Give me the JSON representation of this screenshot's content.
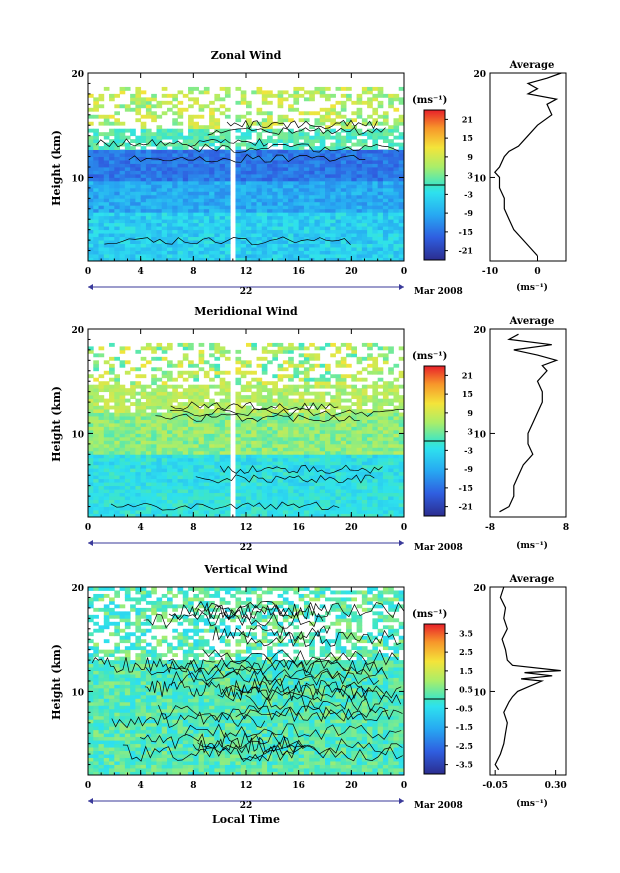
{
  "chart_data": [
    {
      "type": "heatmap",
      "title": "Zonal Wind",
      "ylabel": "Height (km)",
      "ylim": [
        2,
        20
      ],
      "y_ticks": [
        "20",
        "10"
      ],
      "xlim": [
        0,
        24
      ],
      "x_ticks": [
        "0",
        "4",
        "8",
        "12",
        "16",
        "20",
        "0"
      ],
      "date_day": "22",
      "date_month_year": "Mar 2008",
      "colorbar": {
        "unit_label": "(ms⁻¹)",
        "range": [
          -24,
          24
        ],
        "tick_labels": [
          "21",
          "15",
          "9",
          "3",
          "-3",
          "-9",
          "-15",
          "-21"
        ],
        "tick_values": [
          21,
          15,
          9,
          3,
          -3,
          -9,
          -15,
          -21
        ]
      },
      "profile": {
        "title": "Average",
        "xlim": [
          -10,
          6
        ],
        "x_ticks": [
          "-10",
          "0"
        ],
        "x_tick_values": [
          -10,
          0
        ],
        "y_ticks": [
          "20",
          "10"
        ],
        "xlabel": "(ms⁻¹)",
        "height": [
          2.5,
          3,
          4,
          5,
          6,
          7,
          8,
          9,
          10,
          10.5,
          11,
          12,
          12.5,
          13,
          14,
          15,
          16,
          17,
          17.5,
          18,
          18.5,
          19,
          19.5,
          20
        ],
        "value": [
          0,
          -1,
          -3,
          -5,
          -6,
          -7,
          -7,
          -8,
          -8,
          -9,
          -8,
          -7,
          -6,
          -4,
          -2,
          0,
          3,
          2,
          4,
          -2,
          0,
          -2,
          2,
          5
        ]
      }
    },
    {
      "type": "heatmap",
      "title": "Meridional Wind",
      "ylabel": "Height (km)",
      "ylim": [
        2,
        20
      ],
      "y_ticks": [
        "20",
        "10"
      ],
      "xlim": [
        0,
        24
      ],
      "x_ticks": [
        "0",
        "4",
        "8",
        "12",
        "16",
        "20",
        "0"
      ],
      "date_day": "22",
      "date_month_year": "Mar 2008",
      "colorbar": {
        "unit_label": "(ms⁻¹)",
        "range": [
          -24,
          24
        ],
        "tick_labels": [
          "21",
          "15",
          "9",
          "3",
          "-3",
          "-9",
          "-15",
          "-21"
        ],
        "tick_values": [
          21,
          15,
          9,
          3,
          -3,
          -9,
          -15,
          -21
        ]
      },
      "profile": {
        "title": "Average",
        "xlim": [
          -8,
          8
        ],
        "x_ticks": [
          "-8",
          "8"
        ],
        "x_tick_values": [
          -8,
          8
        ],
        "y_ticks": [
          "20",
          "10"
        ],
        "xlabel": "(ms⁻¹)",
        "height": [
          2.5,
          3,
          4,
          5,
          6,
          7,
          8,
          9,
          10,
          11,
          12,
          13,
          14,
          15,
          16,
          16.5,
          17,
          17.5,
          18,
          18.5,
          19,
          19.5
        ],
        "value": [
          -6,
          -4,
          -3,
          -3,
          -2,
          -1,
          1,
          0,
          0,
          1,
          2,
          3,
          3,
          2,
          4,
          3,
          6,
          2,
          -3,
          5,
          -4,
          -2
        ]
      }
    },
    {
      "type": "heatmap",
      "title": "Vertical Wind",
      "ylabel": "Height (km)",
      "xlabel": "Local Time",
      "ylim": [
        2,
        20
      ],
      "y_ticks": [
        "20",
        "10"
      ],
      "xlim": [
        0,
        24
      ],
      "x_ticks": [
        "0",
        "4",
        "8",
        "12",
        "16",
        "20",
        "0"
      ],
      "date_day": "22",
      "date_month_year": "Mar 2008",
      "colorbar": {
        "unit_label": "(ms⁻¹)",
        "range": [
          -4,
          4
        ],
        "tick_labels": [
          "3.5",
          "2.5",
          "1.5",
          "0.5",
          "-0.5",
          "-1.5",
          "-2.5",
          "-3.5"
        ],
        "tick_values": [
          3.5,
          2.5,
          1.5,
          0.5,
          -0.5,
          -1.5,
          -2.5,
          -3.5
        ]
      },
      "profile": {
        "title": "Average",
        "xlim": [
          -0.08,
          0.36
        ],
        "x_ticks": [
          "-0.05",
          "0.30"
        ],
        "x_tick_values": [
          -0.05,
          0.3
        ],
        "y_ticks": [
          "20",
          "10"
        ],
        "xlabel": "(ms⁻¹)",
        "height": [
          2.5,
          3,
          4,
          5,
          6,
          7,
          8,
          9,
          9.5,
          10,
          10.5,
          11,
          11.2,
          11.5,
          11.8,
          12,
          12.5,
          13,
          14,
          15,
          16,
          17,
          18,
          19,
          20
        ],
        "value": [
          -0.03,
          -0.05,
          -0.02,
          0.0,
          0.01,
          0.02,
          0.0,
          0.03,
          0.05,
          0.08,
          0.15,
          0.22,
          0.1,
          0.28,
          0.12,
          0.33,
          0.05,
          0.02,
          0.01,
          -0.01,
          0.02,
          0.0,
          0.01,
          -0.02,
          0.0
        ]
      }
    }
  ]
}
